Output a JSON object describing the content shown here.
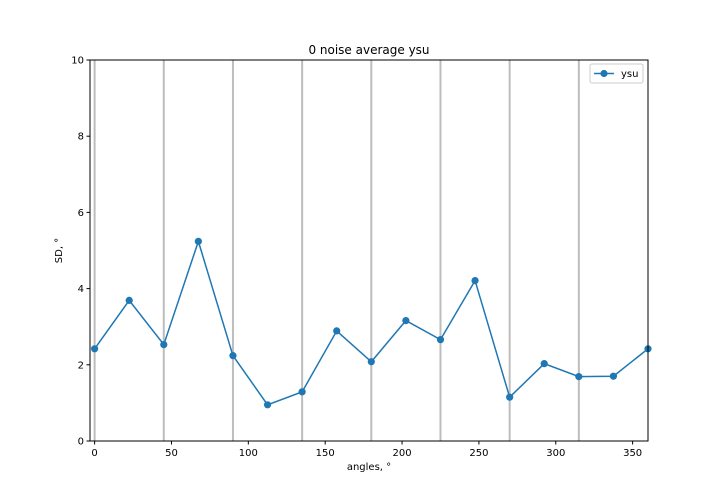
{
  "chart_data": {
    "type": "line",
    "title": "0 noise average ysu",
    "xlabel": "angles, °",
    "ylabel": "SD, °",
    "xlim": [
      -3,
      360
    ],
    "ylim": [
      0,
      10
    ],
    "xticks": [
      0,
      50,
      100,
      150,
      200,
      250,
      300,
      350
    ],
    "yticks": [
      0,
      2,
      4,
      6,
      8,
      10
    ],
    "vlines": [
      0,
      45,
      90,
      135,
      180,
      225,
      270,
      315
    ],
    "legend_position": "top-right",
    "grid": false,
    "series": [
      {
        "name": "ysu",
        "color": "#1f77b4",
        "marker": "circle",
        "x": [
          0,
          22.5,
          45,
          67.5,
          90,
          112.5,
          135,
          157.5,
          180,
          202.5,
          225,
          247.5,
          270,
          292.5,
          315,
          337.5,
          360
        ],
        "y": [
          2.42,
          3.69,
          2.53,
          5.24,
          2.24,
          0.95,
          1.29,
          2.89,
          2.08,
          3.16,
          2.66,
          4.21,
          1.15,
          2.03,
          1.69,
          1.7,
          2.42
        ]
      }
    ]
  }
}
